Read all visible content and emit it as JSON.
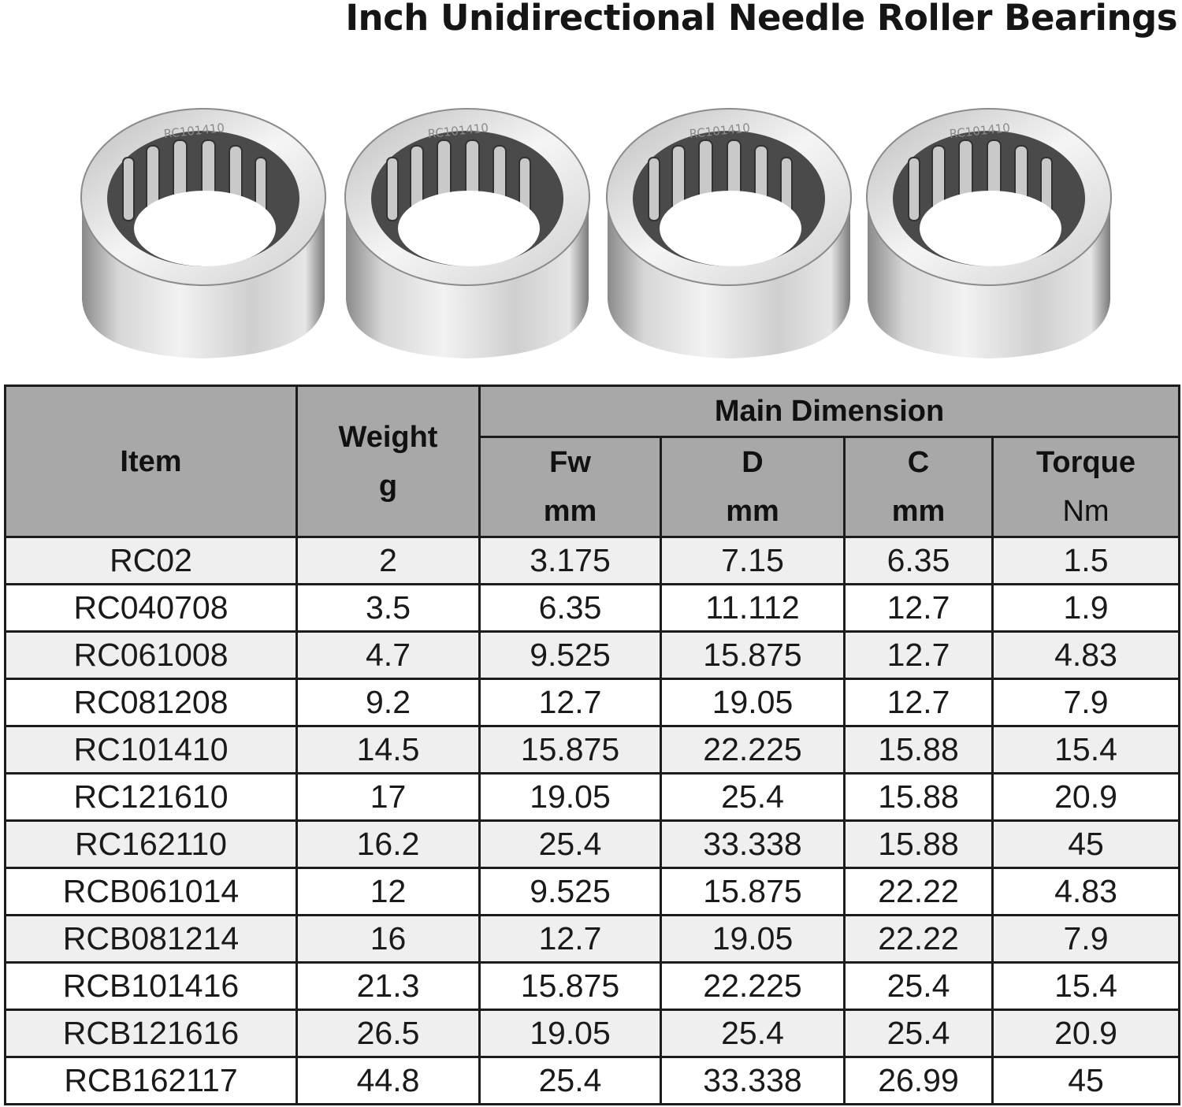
{
  "title": "Inch Unidirectional Needle Roller Bearings",
  "product_images": {
    "count": 4,
    "engraving": "RC101410"
  },
  "table": {
    "headers": {
      "item": "Item",
      "weight": "Weight",
      "weight_unit": "g",
      "group": "Main Dimension",
      "fw": "Fw",
      "fw_unit": "mm",
      "d": "D",
      "d_unit": "mm",
      "c": "C",
      "c_unit": "mm",
      "torque": "Torque",
      "torque_unit": "Nm"
    },
    "rows": [
      [
        "RC02",
        "2",
        "3.175",
        "7.15",
        "6.35",
        "1.5"
      ],
      [
        "RC040708",
        "3.5",
        "6.35",
        "11.112",
        "12.7",
        "1.9"
      ],
      [
        "RC061008",
        "4.7",
        "9.525",
        "15.875",
        "12.7",
        "4.83"
      ],
      [
        "RC081208",
        "9.2",
        "12.7",
        "19.05",
        "12.7",
        "7.9"
      ],
      [
        "RC101410",
        "14.5",
        "15.875",
        "22.225",
        "15.88",
        "15.4"
      ],
      [
        "RC121610",
        "17",
        "19.05",
        "25.4",
        "15.88",
        "20.9"
      ],
      [
        "RC162110",
        "16.2",
        "25.4",
        "33.338",
        "15.88",
        "45"
      ],
      [
        "RCB061014",
        "12",
        "9.525",
        "15.875",
        "22.22",
        "4.83"
      ],
      [
        "RCB081214",
        "16",
        "12.7",
        "19.05",
        "22.22",
        "7.9"
      ],
      [
        "RCB101416",
        "21.3",
        "15.875",
        "22.225",
        "25.4",
        "15.4"
      ],
      [
        "RCB121616",
        "26.5",
        "19.05",
        "25.4",
        "25.4",
        "20.9"
      ],
      [
        "RCB162117",
        "44.8",
        "25.4",
        "33.338",
        "26.99",
        "45"
      ]
    ]
  },
  "colors": {
    "header_bg": "#a8a8a8",
    "row_alt_bg": "#efefef",
    "border": "#1c1c1c"
  }
}
